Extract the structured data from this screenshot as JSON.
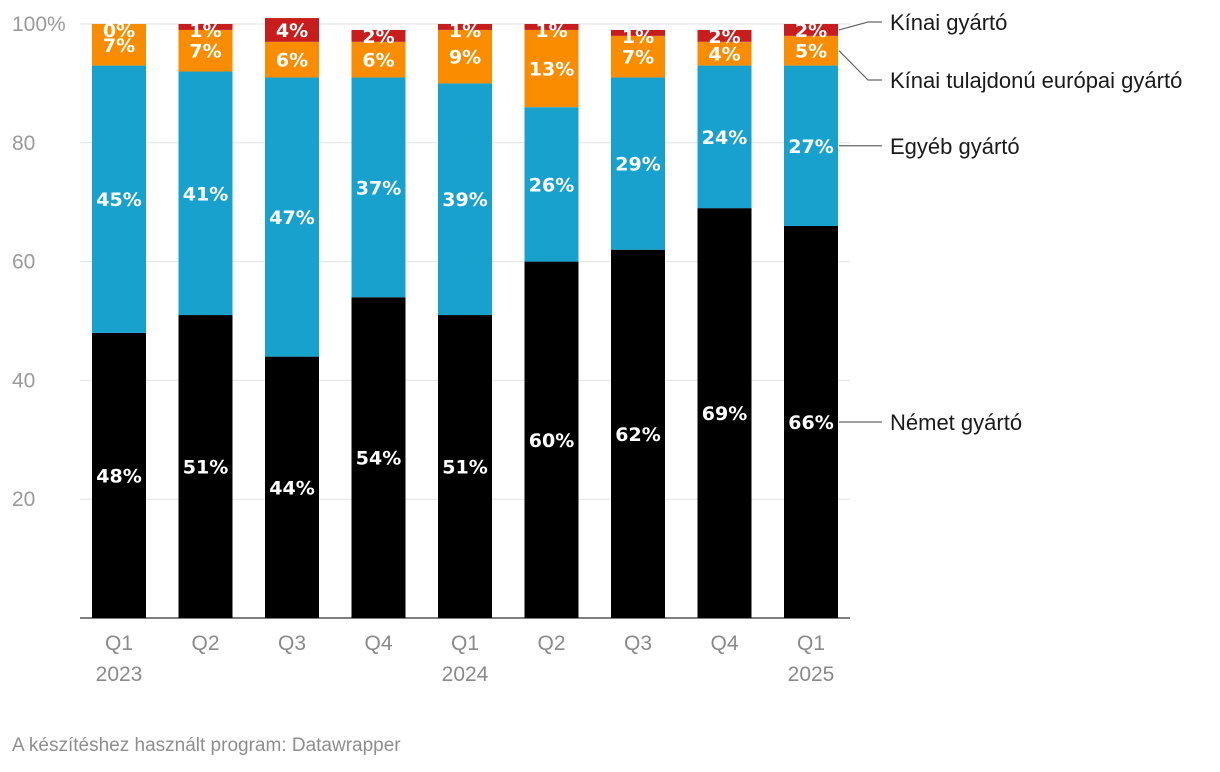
{
  "chart_data": {
    "type": "bar",
    "stacked": true,
    "categories": [
      [
        "Q1",
        "2023"
      ],
      [
        "Q2",
        ""
      ],
      [
        "Q3",
        ""
      ],
      [
        "Q4",
        ""
      ],
      [
        "Q1",
        "2024"
      ],
      [
        "Q2",
        ""
      ],
      [
        "Q3",
        ""
      ],
      [
        "Q4",
        ""
      ],
      [
        "Q1",
        "2025"
      ]
    ],
    "ylim": [
      0,
      100
    ],
    "yticks": [
      {
        "value": 100,
        "label": "100%"
      },
      {
        "value": 80,
        "label": "80"
      },
      {
        "value": 60,
        "label": "60"
      },
      {
        "value": 40,
        "label": "40"
      },
      {
        "value": 20,
        "label": "20"
      }
    ],
    "series": [
      {
        "name": "Német gyártó",
        "color": "#000000",
        "values": [
          48,
          51,
          44,
          54,
          51,
          60,
          62,
          69,
          66
        ]
      },
      {
        "name": "Egyéb gyártó",
        "color": "#18a1cd",
        "values": [
          45,
          41,
          47,
          37,
          39,
          26,
          29,
          24,
          27
        ]
      },
      {
        "name": "Kínai tulajdonú európai gyártó",
        "color": "#fa8c00",
        "values": [
          7,
          7,
          6,
          6,
          9,
          13,
          7,
          4,
          5
        ]
      },
      {
        "name": "Kínai gyártó",
        "color": "#c71e1d",
        "values": [
          0,
          1,
          4,
          2,
          1,
          1,
          1,
          2,
          2
        ]
      }
    ],
    "value_suffix": "%",
    "legend_position": "right, labels aligned to last bar"
  },
  "footer": {
    "text": "A készítéshez használt program: Datawrapper"
  }
}
